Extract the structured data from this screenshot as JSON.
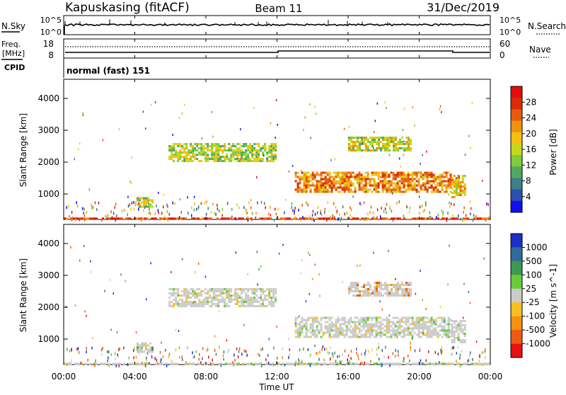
{
  "header": {
    "station": "Kapuskasing (fitACF)",
    "beam": "Beam 11",
    "date": "31/Dec/2019"
  },
  "noise_panel": {
    "left_label": "N.Sky",
    "left_ticks": [
      "10^5",
      "10^0"
    ],
    "right_ticks": [
      "10^5",
      "10^0"
    ],
    "right_label": "N.Search"
  },
  "freq_panel": {
    "left_label_1": "Freq.",
    "left_label_2": "[MHz]",
    "left_ticks": [
      "18",
      "8"
    ],
    "right_ticks": [
      "60",
      "0"
    ],
    "right_label": "Nave",
    "cpid_label": "CPID",
    "mode_text": "normal (fast) 151"
  },
  "chart_data": [
    {
      "type": "heatmap",
      "name": "power",
      "ylabel": "Slant Range [km]",
      "yticks": [
        "1000",
        "2000",
        "3000",
        "4000"
      ],
      "ylim": [
        200,
        4600
      ],
      "xlim": [
        0,
        24
      ],
      "colorbar": {
        "label": "Power [dB]",
        "ticks": [
          "4",
          "8",
          "12",
          "16",
          "20",
          "24",
          "28"
        ],
        "colors": [
          "#1010ee",
          "#2a4fb0",
          "#3d7f8a",
          "#4ea860",
          "#7ccd3a",
          "#c8d818",
          "#f3c012",
          "#f39010",
          "#e85a0c",
          "#dd2a08",
          "#e80a0a"
        ]
      },
      "echo_regions": [
        {
          "x0": 0.0,
          "x1": 24.0,
          "y0": 200,
          "y1": 260,
          "level": 0.9
        },
        {
          "x0": 4.1,
          "x1": 5.0,
          "y0": 600,
          "y1": 900,
          "level": 0.45
        },
        {
          "x0": 5.9,
          "x1": 11.9,
          "y0": 2000,
          "y1": 2600,
          "level": 0.45
        },
        {
          "x0": 13.0,
          "x1": 21.8,
          "y0": 1050,
          "y1": 1700,
          "level": 0.72
        },
        {
          "x0": 16.0,
          "x1": 19.5,
          "y0": 2350,
          "y1": 2800,
          "level": 0.5
        },
        {
          "x0": 21.8,
          "x1": 22.6,
          "y0": 900,
          "y1": 1600,
          "level": 0.6
        }
      ]
    },
    {
      "type": "heatmap",
      "name": "velocity",
      "ylabel": "Slant Range [km]",
      "yticks": [
        "1000",
        "2000",
        "3000",
        "4000"
      ],
      "ylim": [
        200,
        4600
      ],
      "xlim": [
        0,
        24
      ],
      "xlabel": "Time UT",
      "xticks": [
        "00:00",
        "04:00",
        "08:00",
        "12:00",
        "16:00",
        "20:00",
        "00:00"
      ],
      "colorbar": {
        "label": "Velocity [m s^-1]",
        "ticks": [
          "1000",
          "500",
          "100",
          "25",
          "-25",
          "-100",
          "-500",
          "-1000"
        ],
        "colors": [
          "#1a2fc8",
          "#2e6d9a",
          "#3a9a50",
          "#68cc38",
          "#cccccc",
          "#f5c020",
          "#f59010",
          "#ee5a10",
          "#e81010"
        ]
      },
      "echo_regions": [
        {
          "x0": 0.0,
          "x1": 24.0,
          "y0": 200,
          "y1": 260,
          "level": 0.5
        },
        {
          "x0": 4.1,
          "x1": 5.0,
          "y0": 600,
          "y1": 900,
          "level": 0.4
        },
        {
          "x0": 5.9,
          "x1": 11.9,
          "y0": 2000,
          "y1": 2600,
          "level": 0.5
        },
        {
          "x0": 13.0,
          "x1": 21.8,
          "y0": 1050,
          "y1": 1700,
          "level": 0.5
        },
        {
          "x0": 16.0,
          "x1": 19.5,
          "y0": 2350,
          "y1": 2800,
          "level": 0.7
        },
        {
          "x0": 21.8,
          "x1": 22.6,
          "y0": 900,
          "y1": 1600,
          "level": 0.5
        }
      ]
    }
  ]
}
